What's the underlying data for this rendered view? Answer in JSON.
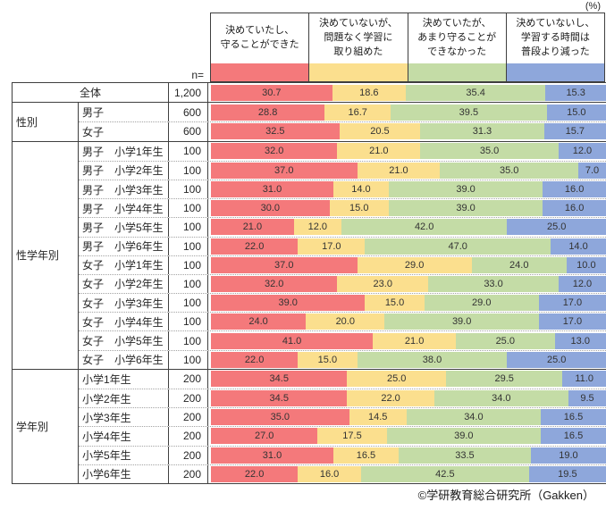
{
  "percent_label": "(%)",
  "n_label": "n=",
  "footer": "©学研教育総合研究所（Gakken）",
  "columns": [
    {
      "label": "決めていたし、\n守ることができた",
      "color": "#f4797b"
    },
    {
      "label": "決めていないが、\n問題なく学習に\n取り組めた",
      "color": "#fbdf8e"
    },
    {
      "label": "決めていたが、\nあまり守ることが\nできなかった",
      "color": "#c4dca6"
    },
    {
      "label": "決めていないし、\n学習する時間は\n普段より減った",
      "color": "#8ea7db"
    }
  ],
  "groups": [
    {
      "name": "",
      "merged": true,
      "rows": [
        {
          "label": "全体",
          "n": "1,200",
          "values": [
            30.7,
            18.6,
            35.4,
            15.3
          ]
        }
      ]
    },
    {
      "name": "性別",
      "merged": false,
      "rows": [
        {
          "label": "男子",
          "n": "600",
          "values": [
            28.8,
            16.7,
            39.5,
            15.0
          ]
        },
        {
          "label": "女子",
          "n": "600",
          "values": [
            32.5,
            20.5,
            31.3,
            15.7
          ]
        }
      ]
    },
    {
      "name": "性学年別",
      "merged": false,
      "rows": [
        {
          "label": "男子　小学1年生",
          "n": "100",
          "values": [
            32.0,
            21.0,
            35.0,
            12.0
          ]
        },
        {
          "label": "男子　小学2年生",
          "n": "100",
          "values": [
            37.0,
            21.0,
            35.0,
            7.0
          ]
        },
        {
          "label": "男子　小学3年生",
          "n": "100",
          "values": [
            31.0,
            14.0,
            39.0,
            16.0
          ]
        },
        {
          "label": "男子　小学4年生",
          "n": "100",
          "values": [
            30.0,
            15.0,
            39.0,
            16.0
          ]
        },
        {
          "label": "男子　小学5年生",
          "n": "100",
          "values": [
            21.0,
            12.0,
            42.0,
            25.0
          ]
        },
        {
          "label": "男子　小学6年生",
          "n": "100",
          "values": [
            22.0,
            17.0,
            47.0,
            14.0
          ]
        },
        {
          "label": "女子　小学1年生",
          "n": "100",
          "values": [
            37.0,
            29.0,
            24.0,
            10.0
          ]
        },
        {
          "label": "女子　小学2年生",
          "n": "100",
          "values": [
            32.0,
            23.0,
            33.0,
            12.0
          ]
        },
        {
          "label": "女子　小学3年生",
          "n": "100",
          "values": [
            39.0,
            15.0,
            29.0,
            17.0
          ]
        },
        {
          "label": "女子　小学4年生",
          "n": "100",
          "values": [
            24.0,
            20.0,
            39.0,
            17.0
          ]
        },
        {
          "label": "女子　小学5年生",
          "n": "100",
          "values": [
            41.0,
            21.0,
            25.0,
            13.0
          ]
        },
        {
          "label": "女子　小学6年生",
          "n": "100",
          "values": [
            22.0,
            15.0,
            38.0,
            25.0
          ]
        }
      ]
    },
    {
      "name": "学年別",
      "merged": false,
      "rows": [
        {
          "label": "小学1年生",
          "n": "200",
          "values": [
            34.5,
            25.0,
            29.5,
            11.0
          ]
        },
        {
          "label": "小学2年生",
          "n": "200",
          "values": [
            34.5,
            22.0,
            34.0,
            9.5
          ]
        },
        {
          "label": "小学3年生",
          "n": "200",
          "values": [
            35.0,
            14.5,
            34.0,
            16.5
          ]
        },
        {
          "label": "小学4年生",
          "n": "200",
          "values": [
            27.0,
            17.5,
            39.0,
            16.5
          ]
        },
        {
          "label": "小学5年生",
          "n": "200",
          "values": [
            31.0,
            16.5,
            33.5,
            19.0
          ]
        },
        {
          "label": "小学6年生",
          "n": "200",
          "values": [
            22.0,
            16.0,
            42.5,
            19.5
          ]
        }
      ]
    }
  ],
  "chart_data": {
    "type": "bar",
    "stacked": true,
    "orientation": "horizontal",
    "unit": "%",
    "xlim": [
      0,
      100
    ],
    "title": "",
    "categories": [
      "全体",
      "男子",
      "女子",
      "男子　小学1年生",
      "男子　小学2年生",
      "男子　小学3年生",
      "男子　小学4年生",
      "男子　小学5年生",
      "男子　小学6年生",
      "女子　小学1年生",
      "女子　小学2年生",
      "女子　小学3年生",
      "女子　小学4年生",
      "女子　小学5年生",
      "女子　小学6年生",
      "小学1年生",
      "小学2年生",
      "小学3年生",
      "小学4年生",
      "小学5年生",
      "小学6年生"
    ],
    "n_values": [
      1200,
      600,
      600,
      100,
      100,
      100,
      100,
      100,
      100,
      100,
      100,
      100,
      100,
      100,
      100,
      200,
      200,
      200,
      200,
      200,
      200
    ],
    "legend_position": "top",
    "series": [
      {
        "name": "決めていたし、守ることができた",
        "color": "#f4797b",
        "values": [
          30.7,
          28.8,
          32.5,
          32.0,
          37.0,
          31.0,
          30.0,
          21.0,
          22.0,
          37.0,
          32.0,
          39.0,
          24.0,
          41.0,
          22.0,
          34.5,
          34.5,
          35.0,
          27.0,
          31.0,
          22.0
        ]
      },
      {
        "name": "決めていないが、問題なく学習に取り組めた",
        "color": "#fbdf8e",
        "values": [
          18.6,
          16.7,
          20.5,
          21.0,
          21.0,
          14.0,
          15.0,
          12.0,
          17.0,
          29.0,
          23.0,
          15.0,
          20.0,
          21.0,
          15.0,
          25.0,
          22.0,
          14.5,
          17.5,
          16.5,
          16.0
        ]
      },
      {
        "name": "決めていたが、あまり守ることができなかった",
        "color": "#c4dca6",
        "values": [
          35.4,
          39.5,
          31.3,
          35.0,
          35.0,
          39.0,
          39.0,
          42.0,
          47.0,
          24.0,
          33.0,
          29.0,
          39.0,
          25.0,
          38.0,
          29.5,
          34.0,
          34.0,
          39.0,
          33.5,
          42.5
        ]
      },
      {
        "name": "決めていないし、学習する時間は普段より減った",
        "color": "#8ea7db",
        "values": [
          15.3,
          15.0,
          15.7,
          12.0,
          7.0,
          16.0,
          16.0,
          25.0,
          14.0,
          10.0,
          12.0,
          17.0,
          17.0,
          13.0,
          25.0,
          11.0,
          9.5,
          16.5,
          16.5,
          19.0,
          19.5
        ]
      }
    ]
  }
}
